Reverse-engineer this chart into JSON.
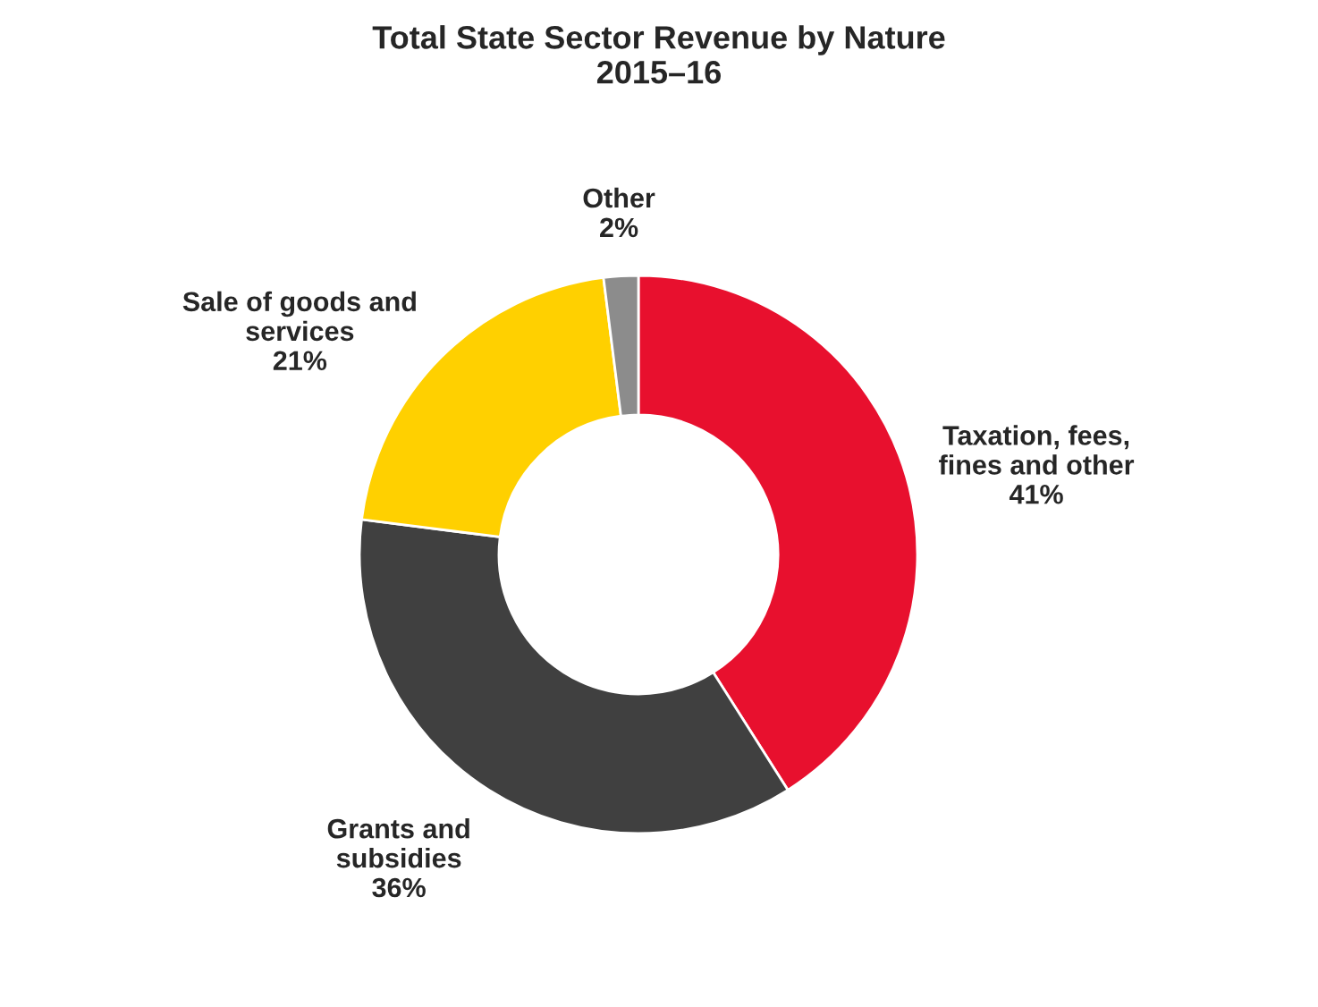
{
  "chart_data": {
    "type": "donut",
    "title": "Total State Sector Revenue by Nature\n2015–16",
    "categories": [
      "Taxation, fees,\nfines and other",
      "Grants and\nsubsidies",
      "Sale of goods and\nservices",
      "Other"
    ],
    "values": [
      41,
      36,
      21,
      2
    ],
    "value_labels": [
      "41%",
      "36%",
      "21%",
      "2%"
    ],
    "colors": [
      "#e8102e",
      "#404040",
      "#ffd000",
      "#8c8c8c"
    ],
    "legend": false
  }
}
